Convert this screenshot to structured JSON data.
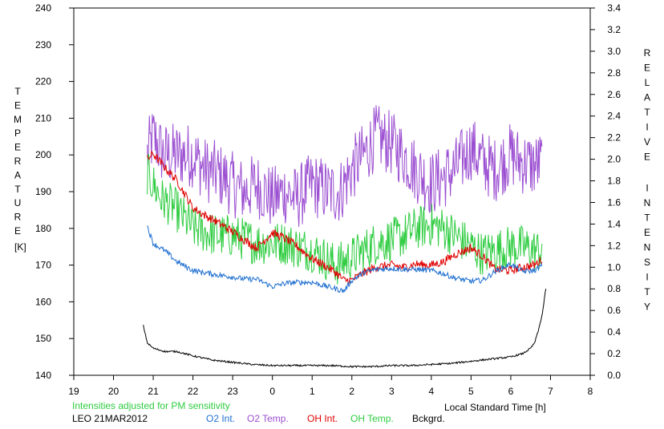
{
  "chart_data": {
    "type": "line",
    "x_ticks": [
      "19",
      "20",
      "21",
      "22",
      "23",
      "0",
      "1",
      "2",
      "3",
      "4",
      "5",
      "6",
      "7",
      "8"
    ],
    "xlim": [
      19,
      32
    ],
    "y_left_ticks": [
      "140",
      "150",
      "160",
      "170",
      "180",
      "190",
      "200",
      "210",
      "220",
      "230",
      "240"
    ],
    "ylim_left": [
      140,
      240
    ],
    "y_right_ticks": [
      "0.0",
      "0.2",
      "0.4",
      "0.6",
      "0.8",
      "1.0",
      "1.2",
      "1.4",
      "1.6",
      "1.8",
      "2.0",
      "2.2",
      "2.4",
      "2.6",
      "2.8",
      "3.0",
      "3.2",
      "3.4"
    ],
    "ylim_right": [
      0,
      3.4
    ],
    "ylabel_left": "TEMPERATURE",
    "ylabel_left_unit": "[K]",
    "ylabel_right": "RELATIVE INTENSITY",
    "xlabel": "Local Standard Time [h]",
    "note": "Intensities adjusted for PM sensitivity",
    "station_date": "LEO 21MAR2012",
    "colors": {
      "o2_int": "#1f6fd0",
      "o2_temp": "#9b4fd1",
      "oh_int": "#e00000",
      "oh_temp": "#2ecc40",
      "bckgrd": "#000000",
      "note": "#2ecc40"
    },
    "legend": [
      {
        "key": "o2_int",
        "label": "O2 Int."
      },
      {
        "key": "o2_temp",
        "label": "O2 Temp."
      },
      {
        "key": "oh_int",
        "label": "OH Int."
      },
      {
        "key": "oh_temp",
        "label": "OH Temp."
      },
      {
        "key": "bckgrd",
        "label": "Bckgrd."
      }
    ],
    "series": [
      {
        "key": "o2_temp",
        "name": "O2 Temp.",
        "axis": "left",
        "x": [
          20.85,
          21.0,
          21.25,
          21.5,
          22.0,
          22.3,
          22.6,
          23.0,
          23.3,
          23.6,
          24.0,
          24.3,
          24.6,
          25.0,
          25.4,
          25.7,
          26.0,
          26.3,
          26.6,
          26.8,
          27.0,
          27.3,
          27.6,
          28.0,
          28.3,
          28.6,
          29.0,
          29.3,
          29.6,
          30.0,
          30.3,
          30.6,
          30.8
        ],
        "y": [
          200,
          205,
          200,
          200,
          200,
          196,
          195,
          192,
          190,
          192,
          188,
          190,
          188,
          192,
          190,
          190,
          196,
          200,
          205,
          204,
          203,
          200,
          196,
          192,
          194,
          196,
          202,
          198,
          196,
          200,
          198,
          197,
          198
        ],
        "noise": 9
      },
      {
        "key": "oh_temp",
        "name": "OH Temp.",
        "axis": "left",
        "x": [
          20.85,
          21.0,
          21.2,
          21.5,
          22.0,
          22.3,
          22.6,
          23.0,
          23.3,
          23.6,
          24.0,
          24.3,
          24.6,
          25.0,
          25.3,
          25.6,
          26.0,
          26.3,
          26.6,
          27.0,
          27.3,
          27.6,
          28.0,
          28.3,
          28.6,
          29.0,
          29.3,
          29.6,
          30.0,
          30.3,
          30.6,
          30.8
        ],
        "y": [
          195,
          192,
          188,
          186,
          180,
          179,
          178,
          178,
          177,
          176,
          176,
          176,
          175,
          174,
          172,
          170,
          172,
          174,
          176,
          177,
          178,
          180,
          181,
          180,
          178,
          175,
          173,
          174,
          175,
          175,
          174,
          174
        ],
        "noise": 6
      },
      {
        "key": "oh_int",
        "name": "OH Int.",
        "axis": "right",
        "x": [
          20.85,
          21.0,
          21.3,
          21.6,
          22.0,
          22.3,
          22.6,
          23.0,
          23.3,
          23.6,
          24.0,
          24.3,
          24.6,
          25.0,
          25.3,
          25.6,
          25.8,
          26.0,
          26.3,
          26.6,
          27.0,
          27.3,
          27.6,
          28.0,
          28.3,
          28.6,
          29.0,
          29.3,
          29.6,
          30.0,
          30.3,
          30.6,
          30.8
        ],
        "y": [
          2.0,
          2.05,
          1.92,
          1.8,
          1.55,
          1.48,
          1.42,
          1.33,
          1.25,
          1.18,
          1.32,
          1.27,
          1.2,
          1.08,
          1.02,
          0.95,
          0.88,
          0.88,
          0.95,
          1.0,
          1.02,
          1.0,
          1.03,
          1.02,
          1.05,
          1.12,
          1.18,
          1.1,
          0.98,
          0.97,
          1.0,
          1.02,
          1.08
        ],
        "noise": 0.04
      },
      {
        "key": "o2_int",
        "name": "O2 Int.",
        "axis": "right",
        "x": [
          20.85,
          21.0,
          21.3,
          21.6,
          22.0,
          22.3,
          22.6,
          23.0,
          23.3,
          23.6,
          24.0,
          24.3,
          24.6,
          25.0,
          25.3,
          25.6,
          25.8,
          26.0,
          26.3,
          26.6,
          27.0,
          27.3,
          27.6,
          28.0,
          28.3,
          28.6,
          29.0,
          29.3,
          29.6,
          30.0,
          30.3,
          30.6,
          30.8
        ],
        "y": [
          1.38,
          1.22,
          1.15,
          1.05,
          0.97,
          0.95,
          0.93,
          0.91,
          0.89,
          0.89,
          0.82,
          0.85,
          0.86,
          0.86,
          0.83,
          0.8,
          0.78,
          0.88,
          0.95,
          0.98,
          0.99,
          0.98,
          0.98,
          0.97,
          0.94,
          0.9,
          0.87,
          0.88,
          0.96,
          1.03,
          0.96,
          0.97,
          1.02
        ],
        "noise": 0.025
      },
      {
        "key": "bckgrd",
        "name": "Bckgrd.",
        "axis": "right",
        "x": [
          20.75,
          20.85,
          21.0,
          21.3,
          21.6,
          22.0,
          22.5,
          23.0,
          23.5,
          24.0,
          24.5,
          25.0,
          25.5,
          26.0,
          26.5,
          27.0,
          27.5,
          28.0,
          28.5,
          29.0,
          29.5,
          30.0,
          30.3,
          30.5,
          30.6,
          30.7,
          30.8,
          30.9
        ],
        "y": [
          0.46,
          0.3,
          0.25,
          0.22,
          0.22,
          0.18,
          0.14,
          0.12,
          0.1,
          0.09,
          0.09,
          0.09,
          0.09,
          0.08,
          0.08,
          0.09,
          0.09,
          0.1,
          0.11,
          0.13,
          0.15,
          0.17,
          0.2,
          0.25,
          0.3,
          0.42,
          0.58,
          0.85
        ],
        "noise": 0.008
      }
    ]
  }
}
